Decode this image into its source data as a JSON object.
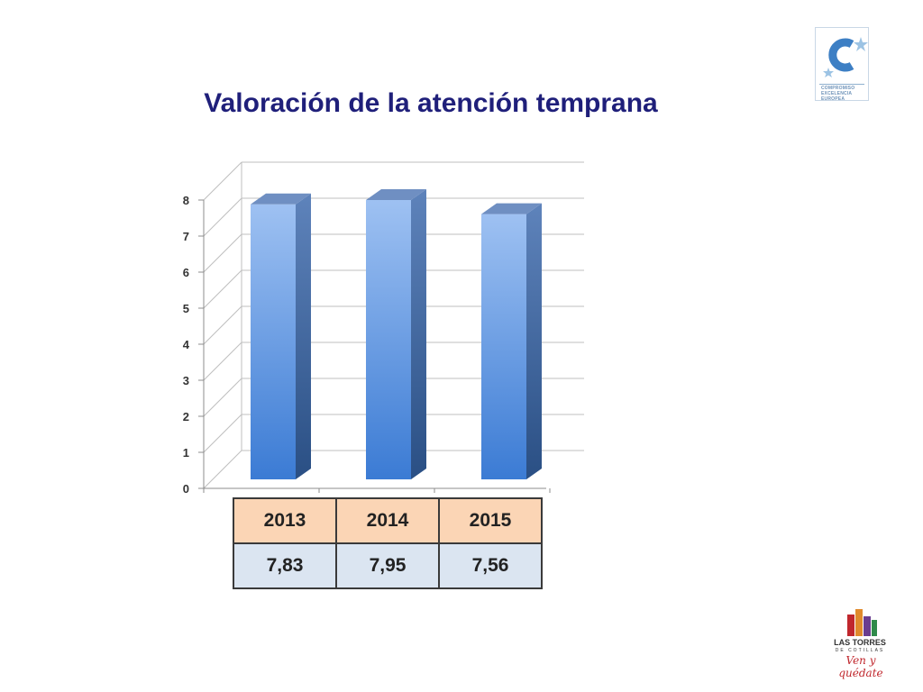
{
  "title": "Valoración de la atención temprana",
  "badge": {
    "lines": [
      "COMPROMISO",
      "EXCELENCIA",
      "EUROPEA"
    ],
    "colors": {
      "primary": "#3d7fc4",
      "stars": "#9cc3e4"
    }
  },
  "chart_data": {
    "type": "bar",
    "categories": [
      "2013",
      "2014",
      "2015"
    ],
    "values": [
      7.83,
      7.95,
      7.56
    ],
    "title": "",
    "xlabel": "",
    "ylabel": "",
    "ylim": [
      0,
      8
    ],
    "yticks": [
      "0",
      "1",
      "2",
      "3",
      "4",
      "5",
      "6",
      "7",
      "8"
    ],
    "grid": true,
    "style": "3d-column",
    "colors": {
      "bar_light": "#9ec1f2",
      "bar_dark": "#3b7bd4",
      "bar_side": "#2f5a93",
      "bar_top": "#6f8fc2"
    }
  },
  "table": {
    "years": [
      "2013",
      "2014",
      "2015"
    ],
    "values": [
      "7,83",
      "7,95",
      "7,56"
    ]
  },
  "brand": {
    "name": "LAS TORRES",
    "sub": "DE COTILLAS",
    "slogan": "Ven y quédate"
  }
}
